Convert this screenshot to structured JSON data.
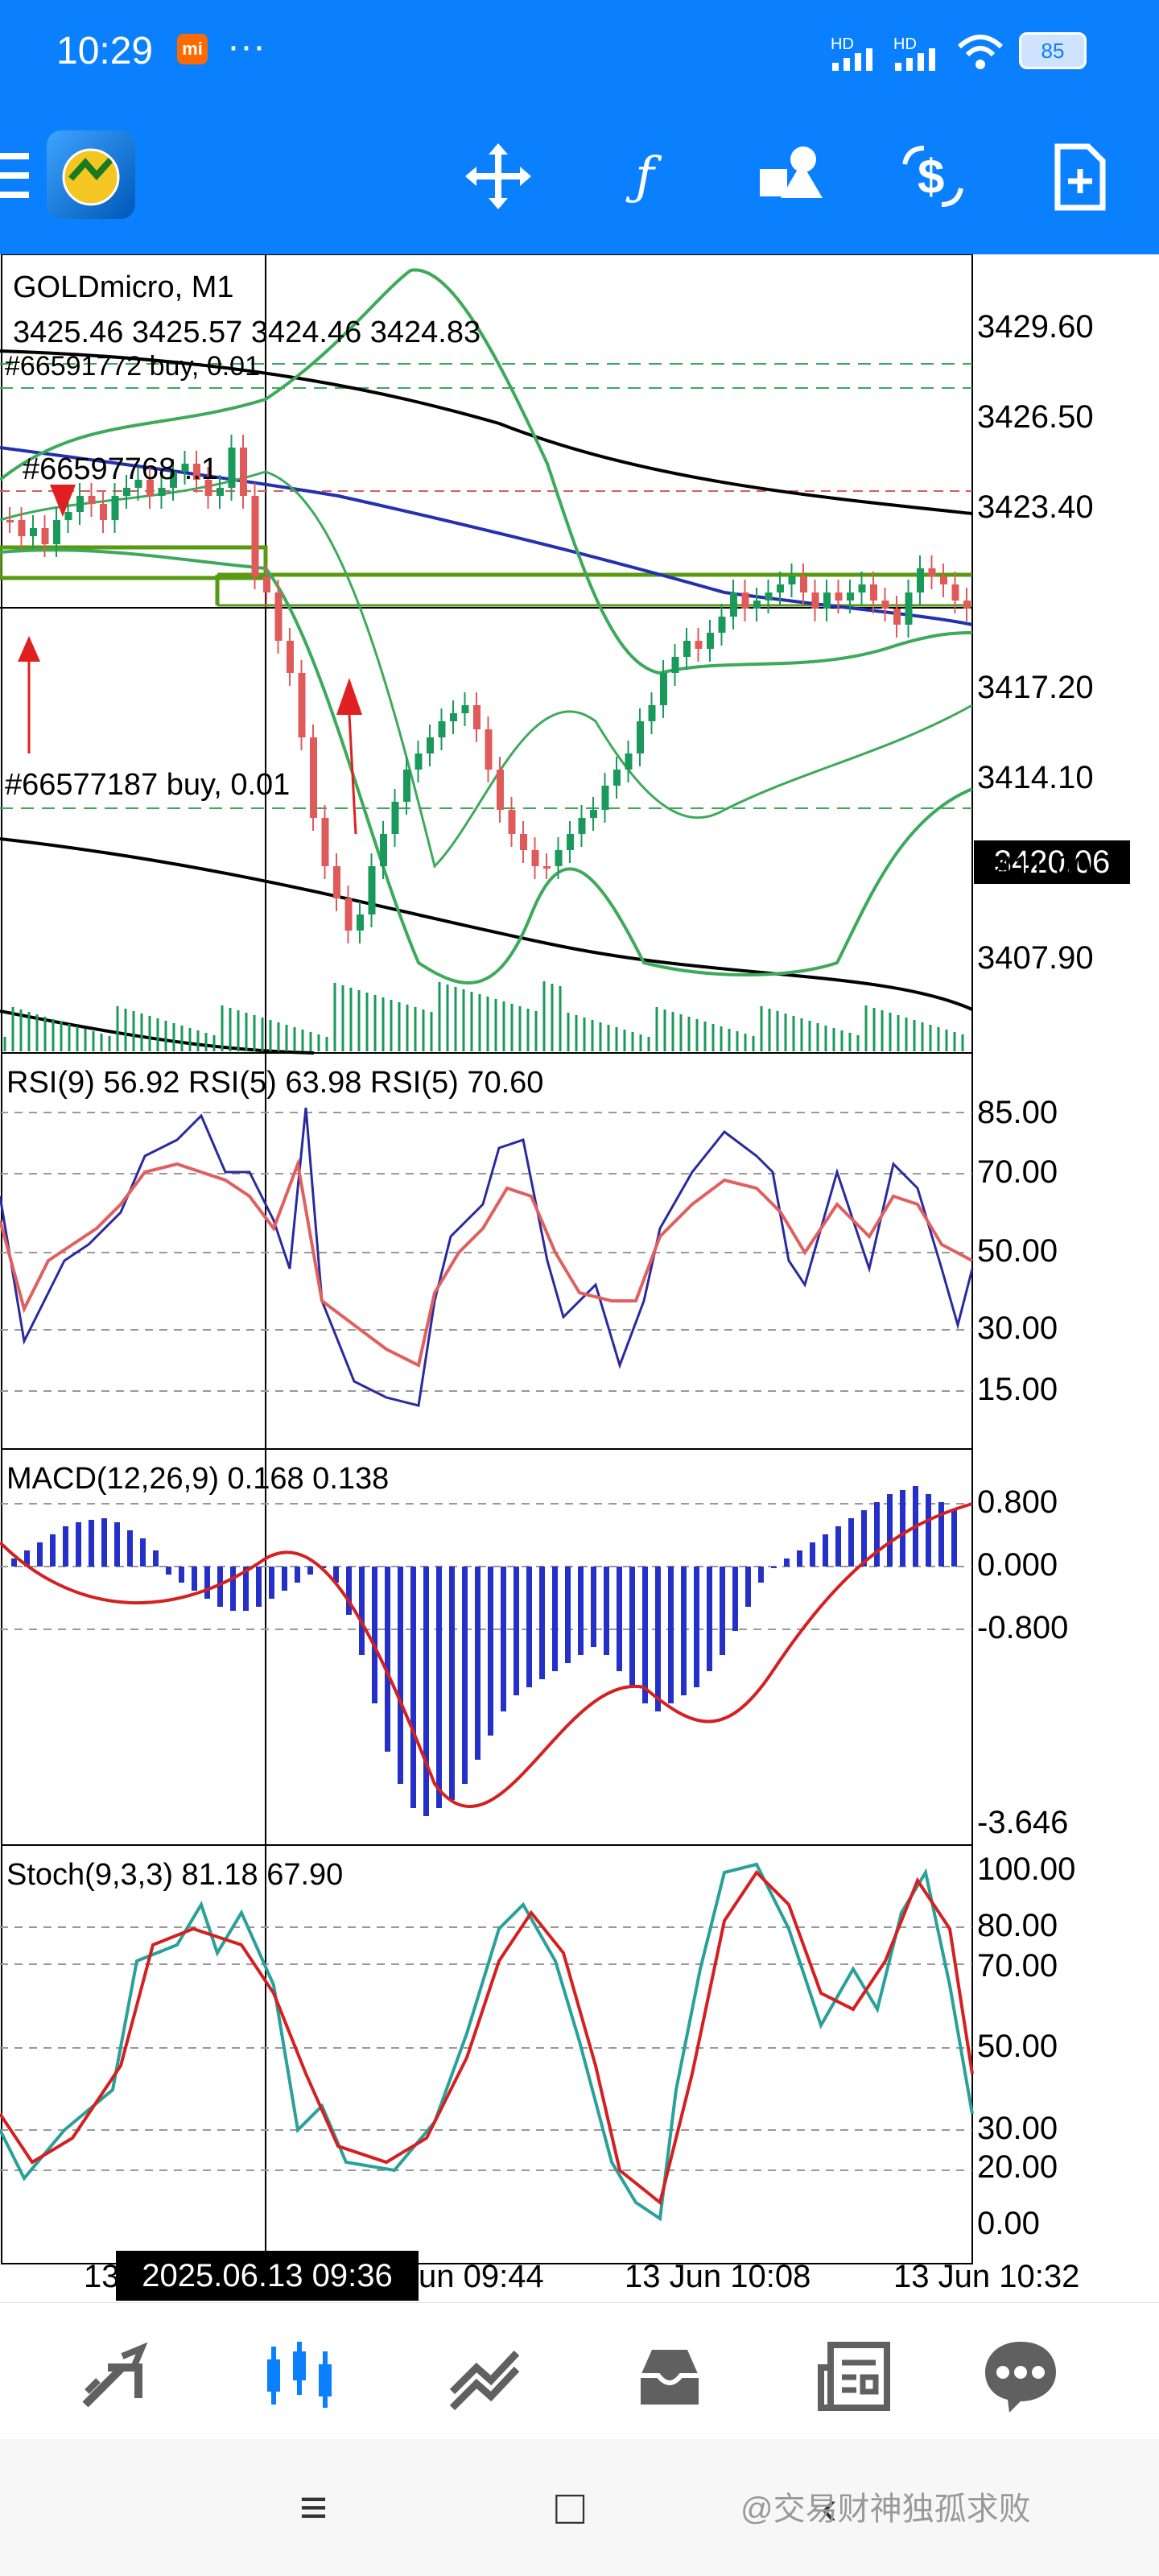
{
  "status_bar": {
    "time": "10:29",
    "mi_badge": "mi",
    "more_dots": "···",
    "signal1": "HD",
    "signal2": "HD",
    "battery": "85"
  },
  "toolbar": {
    "icons": [
      "menu-icon",
      "metatrader-app-icon",
      "crosshair-move-icon",
      "function-icon",
      "objects-shapes-icon",
      "trade-dollar-icon",
      "new-document-icon"
    ],
    "function_glyph": "ƒ",
    "accent": "#0a80ff"
  },
  "chart": {
    "symbol": "GOLDmicro, M1",
    "ohlc": "3425.46 3425.57 3424.46 3424.83",
    "current_price": "3420.06",
    "order_labels": [
      "#66591772 buy, 0.01",
      "#66597768 ..1",
      "#66577187 buy, 0.01"
    ],
    "price_axis": [
      "3429.60",
      "3426.50",
      "3423.40",
      "3417.20",
      "3414.10",
      "3411.00",
      "3407.90"
    ],
    "rsi": {
      "label": "RSI(9) 56.92 RSI(5) 63.98 RSI(5) 70.60",
      "axis": [
        "85.00",
        "70.00",
        "50.00",
        "30.00",
        "15.00"
      ]
    },
    "macd": {
      "label": "MACD(12,26,9) 0.168 0.138",
      "axis": [
        "0.800",
        "0.000",
        "-0.800",
        "-3.646"
      ]
    },
    "stoch": {
      "label": "Stoch(9,3,3) 81.18 67.90",
      "axis": [
        "100.00",
        "80.00",
        "70.00",
        "50.00",
        "30.00",
        "20.00",
        "0.00"
      ]
    },
    "time_axis": {
      "t1": "13",
      "cursor": "2025.06.13 09:36",
      "t2": "un 09:44",
      "t3": "13 Jun 10:08",
      "t4": "13 Jun 10:32"
    },
    "colors": {
      "up": "#1a9a5a",
      "down": "#e05a5a",
      "bands": "#3caa5a",
      "ma_blue": "#2430b0",
      "macd_bar": "#2430c8",
      "signal": "#d42020",
      "stoch_main": "#2aa198"
    }
  },
  "bottom_nav": {
    "items": [
      "quotes-icon",
      "chart-icon",
      "trade-icon",
      "history-icon",
      "news-icon",
      "messages-icon"
    ]
  },
  "system_nav": {
    "menu": "≡",
    "home": "□",
    "back": "‹"
  },
  "watermark": "@交易财神独孤求败"
}
